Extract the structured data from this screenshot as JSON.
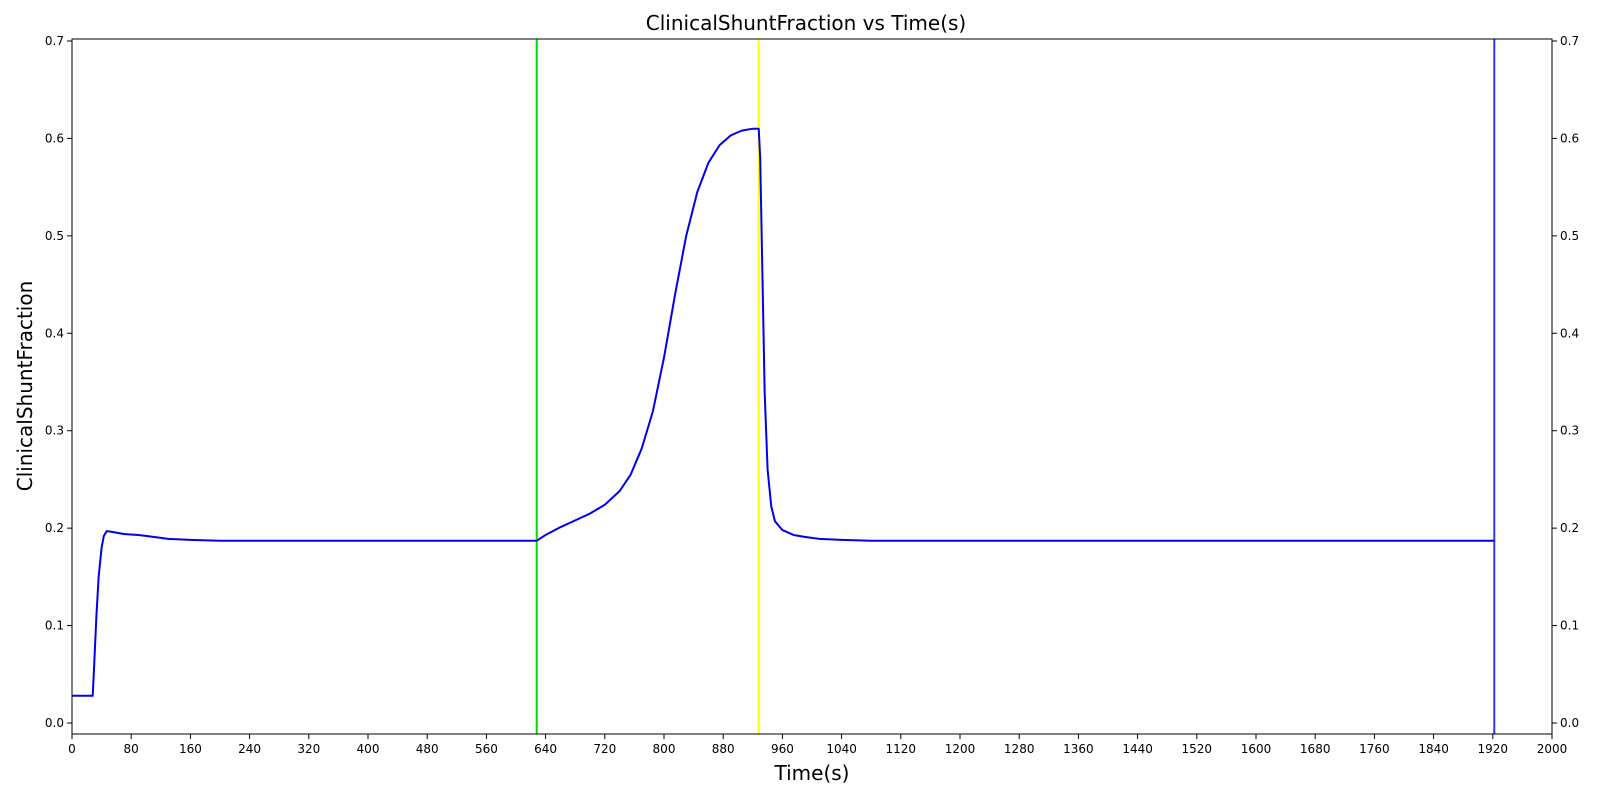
{
  "chart_data": {
    "type": "line",
    "title": "ClinicalShuntFraction vs Time(s)",
    "xlabel": "Time(s)",
    "ylabel": "ClinicalShuntFraction",
    "xlim": [
      0,
      2000
    ],
    "ylim": [
      0,
      0.7
    ],
    "x_ticks": [
      0,
      80,
      160,
      240,
      320,
      400,
      480,
      560,
      640,
      720,
      800,
      880,
      960,
      1040,
      1120,
      1200,
      1280,
      1360,
      1440,
      1520,
      1600,
      1680,
      1760,
      1840,
      1920,
      2000
    ],
    "y_ticks": [
      0.0,
      0.1,
      0.2,
      0.3,
      0.4,
      0.5,
      0.6,
      0.7
    ],
    "y_tick_labels": [
      "0.0",
      "0.1",
      "0.2",
      "0.3",
      "0.4",
      "0.5",
      "0.6",
      "0.7"
    ],
    "grid": false,
    "right_axis_mirrors_left": true,
    "series": [
      {
        "color": "#0000ee",
        "x": [
          0,
          28,
          30,
          33,
          36,
          40,
          43,
          47,
          55,
          70,
          90,
          110,
          130,
          160,
          200,
          240,
          300,
          400,
          500,
          600,
          628,
          640,
          660,
          680,
          700,
          720,
          740,
          755,
          770,
          785,
          800,
          815,
          830,
          845,
          860,
          875,
          890,
          905,
          920,
          928,
          930,
          933,
          936,
          940,
          945,
          950,
          960,
          975,
          990,
          1010,
          1040,
          1080,
          1150,
          1300,
          1500,
          1700,
          1850,
          1922
        ],
        "y": [
          0.028,
          0.028,
          0.06,
          0.11,
          0.15,
          0.18,
          0.192,
          0.197,
          0.196,
          0.194,
          0.193,
          0.191,
          0.189,
          0.188,
          0.187,
          0.187,
          0.187,
          0.187,
          0.187,
          0.187,
          0.187,
          0.193,
          0.201,
          0.208,
          0.215,
          0.224,
          0.238,
          0.255,
          0.282,
          0.32,
          0.375,
          0.44,
          0.5,
          0.545,
          0.575,
          0.593,
          0.603,
          0.608,
          0.61,
          0.61,
          0.58,
          0.46,
          0.34,
          0.26,
          0.222,
          0.207,
          0.198,
          0.193,
          0.191,
          0.189,
          0.188,
          0.187,
          0.187,
          0.187,
          0.187,
          0.187,
          0.187,
          0.187
        ]
      }
    ],
    "vertical_lines": [
      {
        "x": 628,
        "color": "#00dd00"
      },
      {
        "x": 928,
        "color": "#ffff00"
      },
      {
        "x": 1922,
        "color": "#3333ff"
      }
    ]
  }
}
